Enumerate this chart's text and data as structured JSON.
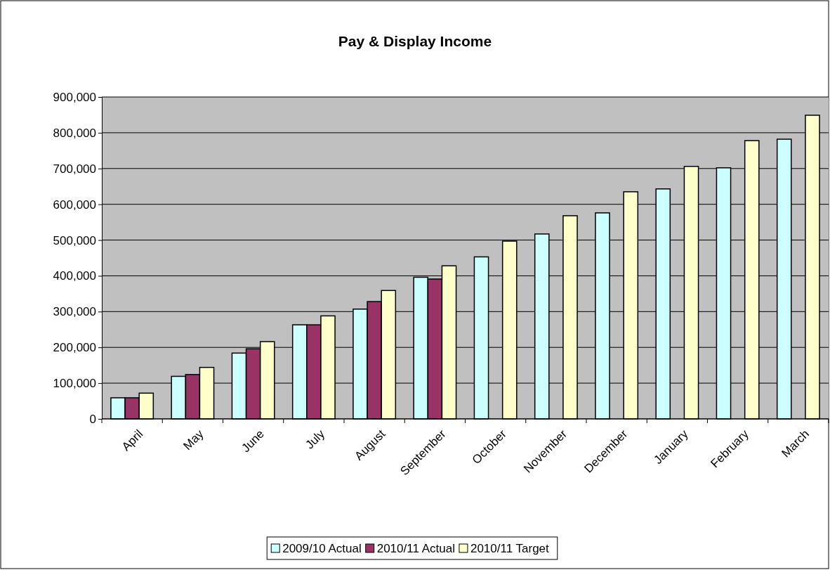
{
  "chart_data": {
    "type": "bar",
    "title": "Pay & Display Income",
    "categories": [
      "April",
      "May",
      "June",
      "July",
      "August",
      "September",
      "October",
      "November",
      "December",
      "January",
      "February",
      "March"
    ],
    "series": [
      {
        "name": "2009/10 Actual",
        "color": "#ccffff",
        "values": [
          59000,
          119000,
          184000,
          263000,
          307000,
          396000,
          453000,
          517000,
          576000,
          643000,
          702000,
          782000
        ]
      },
      {
        "name": "2010/11 Actual",
        "color": "#993366",
        "values": [
          59000,
          124000,
          196000,
          263000,
          328000,
          391000,
          null,
          null,
          null,
          null,
          null,
          null
        ]
      },
      {
        "name": "2010/11 Target",
        "color": "#ffffcc",
        "values": [
          72000,
          144000,
          216000,
          288000,
          359000,
          428000,
          497000,
          568000,
          635000,
          706000,
          778000,
          849000
        ]
      }
    ],
    "ylim": [
      0,
      900000
    ],
    "yticks": [
      {
        "value": 0,
        "label": "0"
      },
      {
        "value": 100000,
        "label": "100,000"
      },
      {
        "value": 200000,
        "label": "200,000"
      },
      {
        "value": 300000,
        "label": "300,000"
      },
      {
        "value": 400000,
        "label": "400,000"
      },
      {
        "value": 500000,
        "label": "500,000"
      },
      {
        "value": 600000,
        "label": "600,000"
      },
      {
        "value": 700000,
        "label": "700,000"
      },
      {
        "value": 800000,
        "label": "800,000"
      },
      {
        "value": 900000,
        "label": "900,000"
      }
    ],
    "grid": "y",
    "legend": "bottom"
  }
}
